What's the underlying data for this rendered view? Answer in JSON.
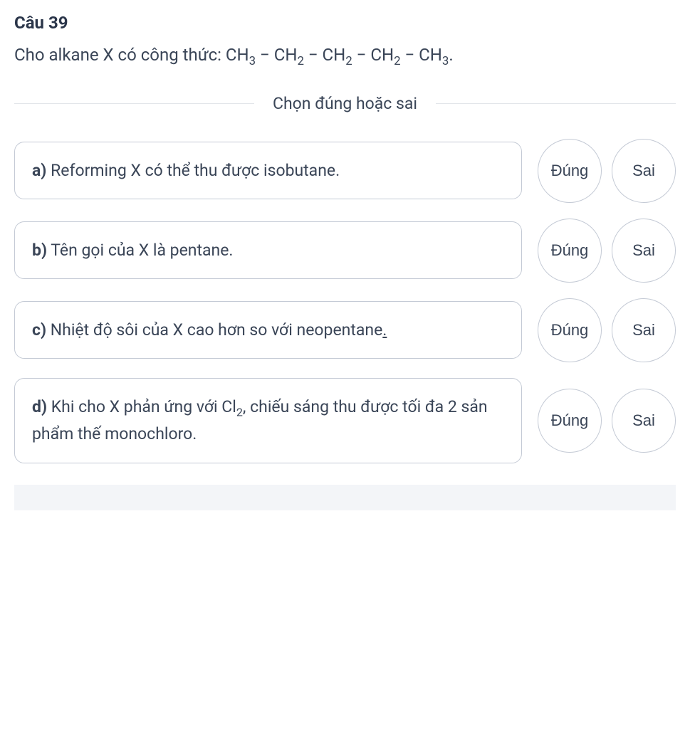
{
  "question": {
    "number": "Câu 39",
    "prompt_prefix": "Cho alkane X có công thức: ",
    "formula_parts": [
      "CH",
      "3",
      " − CH",
      "2",
      " − CH",
      "2",
      " − CH",
      "2",
      " − CH",
      "3",
      "."
    ]
  },
  "divider_text": "Chọn đúng hoặc sai",
  "options": [
    {
      "label": "a)",
      "text": " Reforming X có thể thu được isobutane."
    },
    {
      "label": "b)",
      "text": " Tên gọi của X là pentane."
    },
    {
      "label": "c)",
      "text_before": " Nhiệt độ sôi của X cao hơn so với neopentane",
      "text_underline": ".",
      "text_after": ""
    },
    {
      "label": "d)",
      "text_before": " Khi cho X phản ứng với Cl",
      "sub": "2",
      "text_after": ", chiếu sáng thu được tối đa 2 sản phẩm thế monochloro."
    }
  ],
  "buttons": {
    "true_label": "Đúng",
    "false_label": "Sai"
  },
  "colors": {
    "text": "#2a3549",
    "body_text": "#3a4557",
    "border": "#c4cad5",
    "divider": "#e2e5ea",
    "bg": "#ffffff",
    "footer_bg": "#f3f5f8"
  },
  "typography": {
    "question_number_size": 24,
    "prompt_size": 24,
    "divider_size": 23,
    "option_size": 23,
    "button_size": 22
  }
}
